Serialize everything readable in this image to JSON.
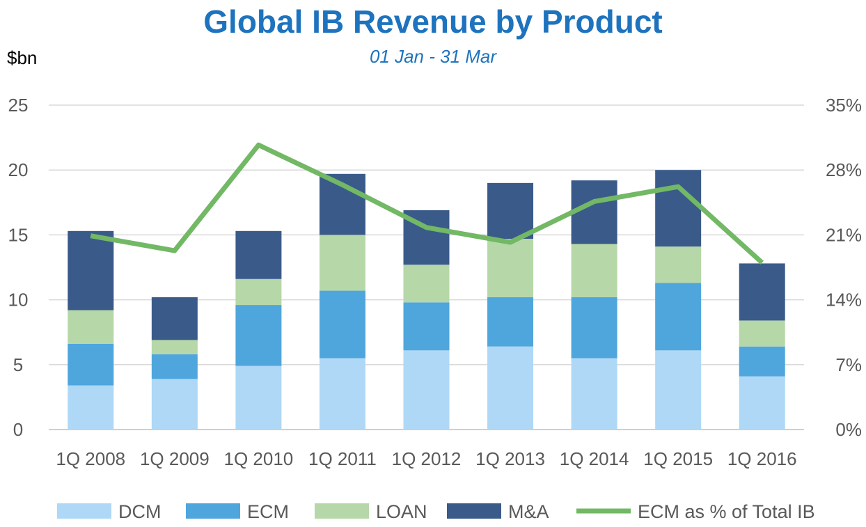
{
  "chart_data": {
    "type": "bar",
    "title": "Global IB Revenue by Product",
    "subtitle": "01 Jan - 31 Mar",
    "ylabel": "$bn",
    "ylim": [
      0,
      25
    ],
    "y_ticks": [
      "0",
      "5",
      "10",
      "15",
      "20",
      "25"
    ],
    "y2lim": [
      0,
      35
    ],
    "y2_ticks": [
      "0%",
      "7%",
      "14%",
      "21%",
      "28%",
      "35%"
    ],
    "grid": true,
    "legend_position": "bottom",
    "categories": [
      "1Q 2008",
      "1Q 2009",
      "1Q 2010",
      "1Q 2011",
      "1Q 2012",
      "1Q 2013",
      "1Q 2014",
      "1Q 2015",
      "1Q 2016"
    ],
    "series": [
      {
        "name": "DCM",
        "type": "bar",
        "color": "#aed8f5",
        "values": [
          3.4,
          3.9,
          4.9,
          5.5,
          6.1,
          6.4,
          5.5,
          6.1,
          4.1
        ]
      },
      {
        "name": "ECM",
        "type": "bar",
        "color": "#4ea6dd",
        "values": [
          3.2,
          1.9,
          4.7,
          5.2,
          3.7,
          3.8,
          4.7,
          5.2,
          2.3
        ]
      },
      {
        "name": "LOAN",
        "type": "bar",
        "color": "#b6d7a8",
        "values": [
          2.6,
          1.1,
          2.0,
          4.3,
          2.9,
          4.5,
          4.1,
          2.8,
          2.0
        ]
      },
      {
        "name": "M&A",
        "type": "bar",
        "color": "#3a5a8a",
        "values": [
          6.1,
          3.3,
          3.7,
          4.7,
          4.2,
          4.3,
          4.9,
          5.9,
          4.4
        ]
      },
      {
        "name": "ECM as % of Total IB",
        "type": "line",
        "axis": "right",
        "color": "#72b865",
        "values": [
          20.9,
          19.3,
          30.7,
          26.4,
          21.8,
          20.2,
          24.6,
          26.2,
          18.0
        ]
      }
    ]
  }
}
